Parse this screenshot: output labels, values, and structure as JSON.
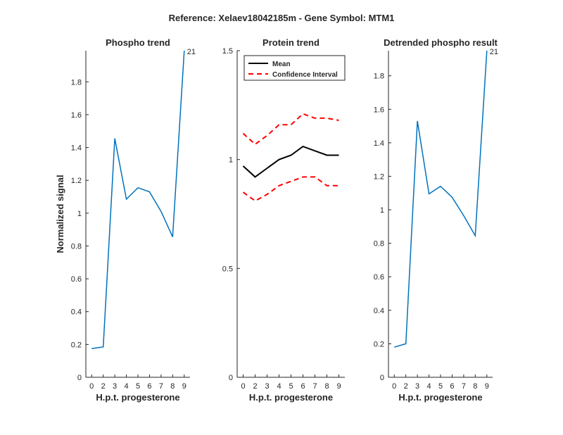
{
  "figure": {
    "title": "Reference:  Xelaev18042185m - Gene Symbol:  MTM1"
  },
  "chart_data": [
    {
      "type": "line",
      "title": "Phospho trend",
      "xlabel": "H.p.t. progesterone",
      "ylabel": "Normalized signal",
      "xlim": [
        -0.5,
        8.5
      ],
      "ylim": [
        0,
        1.99
      ],
      "x_tick_labels": [
        "0",
        "2",
        "3",
        "4",
        "5",
        "6",
        "7",
        "8",
        "9"
      ],
      "y_ticks": [
        0,
        0.2,
        0.4,
        0.6,
        0.8,
        1,
        1.2,
        1.4,
        1.6,
        1.8
      ],
      "y_tick_labels": [
        "0",
        "0.2",
        "0.4",
        "0.6",
        "0.8",
        "1",
        "1.2",
        "1.4",
        "1.6",
        "1.8"
      ],
      "series": [
        {
          "name": "Phospho",
          "color": "#0072bd",
          "values": [
            0.175,
            0.185,
            1.455,
            1.085,
            1.155,
            1.13,
            1.01,
            0.855,
            1.99
          ]
        }
      ],
      "annotations": [
        {
          "text": "21",
          "at_index": 8
        }
      ]
    },
    {
      "type": "line",
      "title": "Protein trend",
      "xlabel": "H.p.t. progesterone",
      "ylabel": "",
      "xlim": [
        -0.5,
        8.5
      ],
      "ylim": [
        0,
        1.5
      ],
      "x_tick_labels": [
        "0",
        "2",
        "3",
        "4",
        "5",
        "6",
        "7",
        "8",
        "9"
      ],
      "y_ticks": [
        0,
        0.5,
        1,
        1.5
      ],
      "y_tick_labels": [
        "0",
        "0.5",
        "1",
        "1.5"
      ],
      "legend": {
        "location": "top-left",
        "entries": [
          "Mean",
          "Confidence Interval"
        ]
      },
      "series": [
        {
          "name": "Mean",
          "color": "#000000",
          "style": "solid",
          "values": [
            0.97,
            0.92,
            0.96,
            1.0,
            1.02,
            1.06,
            1.04,
            1.02,
            1.02
          ]
        },
        {
          "name": "Confidence Interval (upper)",
          "color": "#ff0000",
          "style": "dashed",
          "values": [
            1.12,
            1.07,
            1.11,
            1.16,
            1.16,
            1.21,
            1.19,
            1.19,
            1.18
          ]
        },
        {
          "name": "Confidence Interval (lower)",
          "color": "#ff0000",
          "style": "dashed",
          "values": [
            0.85,
            0.81,
            0.84,
            0.88,
            0.9,
            0.92,
            0.92,
            0.88,
            0.88
          ]
        }
      ]
    },
    {
      "type": "line",
      "title": "Detrended phospho result",
      "xlabel": "H.p.t. progesterone",
      "ylabel": "",
      "xlim": [
        -0.5,
        8.5
      ],
      "ylim": [
        0,
        1.95
      ],
      "x_tick_labels": [
        "0",
        "2",
        "3",
        "4",
        "5",
        "6",
        "7",
        "8",
        "9"
      ],
      "y_ticks": [
        0,
        0.2,
        0.4,
        0.6,
        0.8,
        1,
        1.2,
        1.4,
        1.6,
        1.8
      ],
      "y_tick_labels": [
        "0",
        "0.2",
        "0.4",
        "0.6",
        "0.8",
        "1",
        "1.2",
        "1.4",
        "1.6",
        "1.8"
      ],
      "series": [
        {
          "name": "Detrended",
          "color": "#0072bd",
          "values": [
            0.18,
            0.2,
            1.53,
            1.095,
            1.14,
            1.075,
            0.965,
            0.845,
            1.95
          ]
        }
      ],
      "annotations": [
        {
          "text": "21",
          "at_index": 8
        }
      ]
    }
  ]
}
